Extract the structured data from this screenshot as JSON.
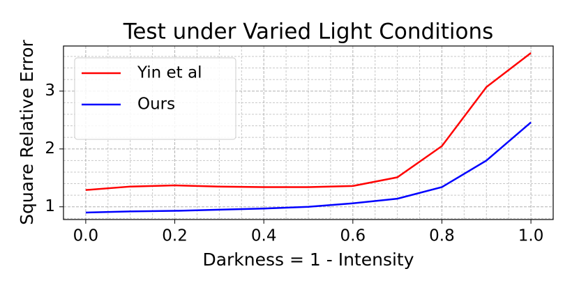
{
  "chart_data": {
    "type": "line",
    "title": "Test under Varied Light Conditions",
    "x_label": "Darkness = 1 - Intensity",
    "y_label": "Square Relative Error",
    "x": [
      0,
      0.1,
      0.2,
      0.3,
      0.4,
      0.5,
      0.6,
      0.7,
      0.8,
      0.9,
      1
    ],
    "series": [
      {
        "name": "Yin et al",
        "color": "#ff0000",
        "values": [
          1.29,
          1.35,
          1.37,
          1.35,
          1.34,
          1.34,
          1.36,
          1.51,
          2.05,
          3.07,
          3.66
        ]
      },
      {
        "name": "Ours",
        "color": "#0000ff",
        "values": [
          0.9,
          0.92,
          0.93,
          0.95,
          0.97,
          1.0,
          1.06,
          1.14,
          1.34,
          1.8,
          2.46
        ]
      }
    ],
    "xlim": [
      -0.05,
      1.05
    ],
    "ylim": [
      0.78,
      3.78
    ],
    "xticks": [
      {
        "value": 0,
        "label": "0.0"
      },
      0.2,
      0.4,
      0.6,
      0.8,
      {
        "value": 1,
        "label": "1.0"
      }
    ],
    "yticks": [
      1,
      2,
      3
    ],
    "xminorticks": [
      0.1,
      0.3,
      0.5,
      0.7,
      0.9,
      0.05,
      0.15,
      0.25,
      0.35,
      0.45,
      0.55,
      0.65,
      0.75,
      0.85,
      0.95
    ],
    "yminorticks": [
      0.8,
      1.2,
      1.4,
      1.6,
      1.8,
      2.2,
      2.4,
      2.6,
      2.8,
      3.2,
      3.4,
      3.6
    ],
    "grid": true,
    "legend": "upper left"
  }
}
